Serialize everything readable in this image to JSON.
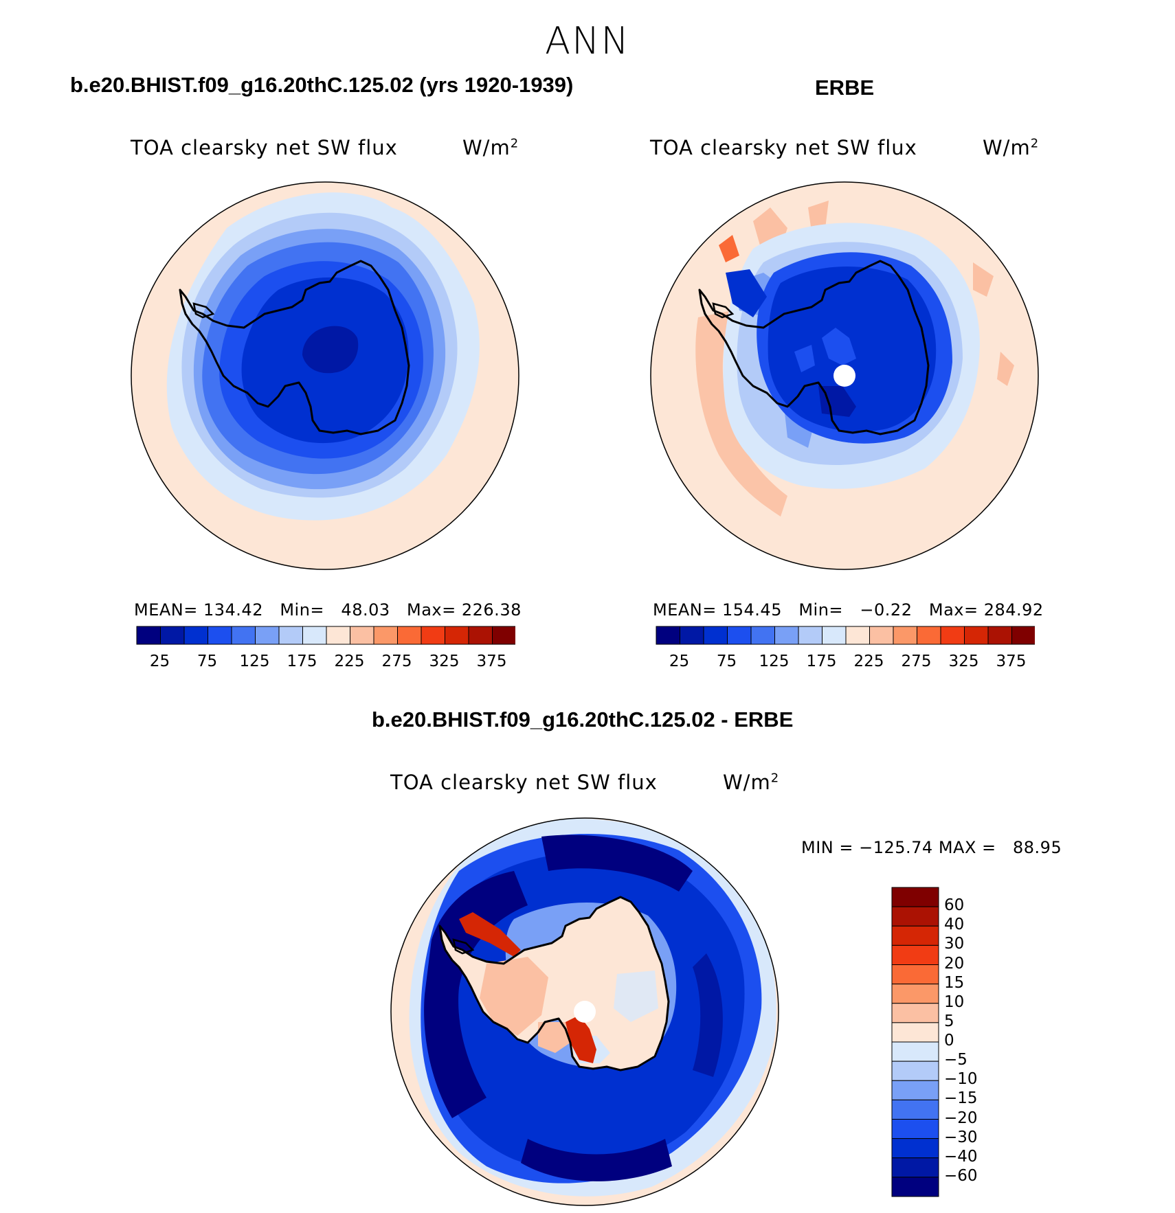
{
  "page_title": "ANN",
  "panels": [
    {
      "title": "b.e20.BHIST.f09_g16.20thC.125.02 (yrs 1920-1939)",
      "variable": "TOA clearsky net SW flux",
      "units": "W/m",
      "units_sup": "2",
      "stats": "MEAN= 134.42   Min=   48.03   Max= 226.38"
    },
    {
      "title": "ERBE",
      "variable": "TOA clearsky net SW flux",
      "units": "W/m",
      "units_sup": "2",
      "stats": "MEAN= 154.45   Min=   −0.22   Max= 284.92"
    },
    {
      "title": "b.e20.BHIST.f09_g16.20thC.125.02 - ERBE",
      "variable": "TOA clearsky net SW flux",
      "units": "W/m",
      "units_sup": "2",
      "stats": "MIN = −125.74 MAX =   88.95"
    }
  ],
  "colorbars": {
    "abs_ticks": [
      "25",
      "75",
      "125",
      "175",
      "225",
      "275",
      "325",
      "375"
    ],
    "abs_colors": [
      "#00007f",
      "#0018a5",
      "#0030d0",
      "#1c4fef",
      "#4273f2",
      "#79a0f6",
      "#b3cbf8",
      "#d8e8fb",
      "#fde6d6",
      "#fbc0a3",
      "#fb9868",
      "#fa6a36",
      "#f13c14",
      "#d52605",
      "#ab1203",
      "#7f0000"
    ],
    "diff_ticks": [
      "60",
      "40",
      "30",
      "20",
      "15",
      "10",
      "5",
      "0",
      "−5",
      "−10",
      "−15",
      "−20",
      "−30",
      "−40",
      "−60"
    ],
    "diff_colors": [
      "#7f0000",
      "#ab1203",
      "#d52605",
      "#f13c14",
      "#fa6a36",
      "#fb9868",
      "#fbc0a3",
      "#fde6d6",
      "#d8e8fb",
      "#b3cbf8",
      "#79a0f6",
      "#4273f2",
      "#1c4fef",
      "#0030d0",
      "#0018a5",
      "#00007f"
    ]
  },
  "icons": {
    "pole_hole": "white-circle-icon"
  }
}
